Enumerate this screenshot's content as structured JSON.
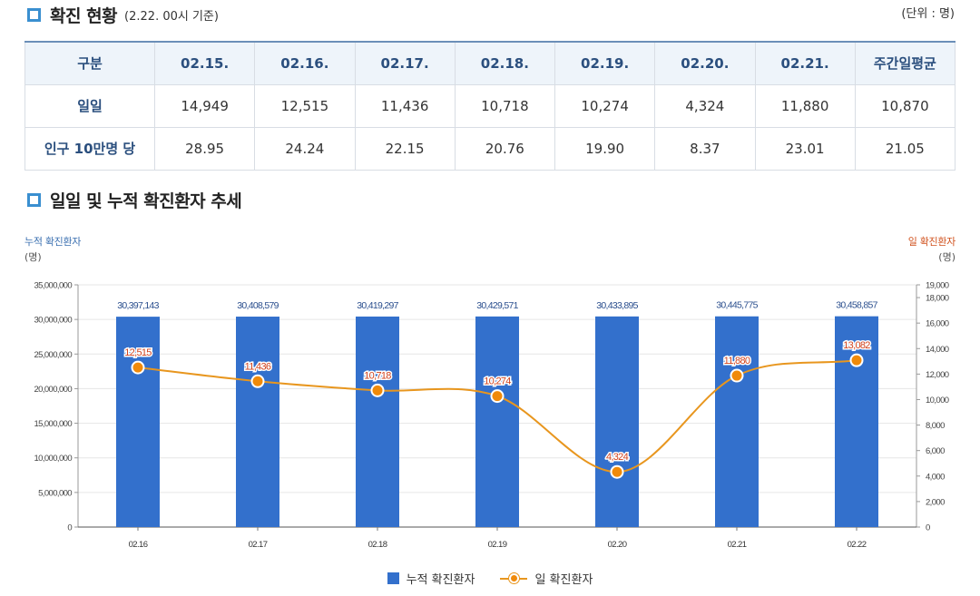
{
  "section1": {
    "title": "확진 현황",
    "subtitle": "(2.22. 00시 기준)",
    "unit": "(단위 : 명)"
  },
  "table": {
    "headers": [
      "구분",
      "02.15.",
      "02.16.",
      "02.17.",
      "02.18.",
      "02.19.",
      "02.20.",
      "02.21.",
      "주간일평균"
    ],
    "rows": [
      {
        "label": "일일",
        "values": [
          "14,949",
          "12,515",
          "11,436",
          "10,718",
          "10,274",
          "4,324",
          "11,880",
          "10,870"
        ]
      },
      {
        "label": "인구 10만명 당",
        "values": [
          "28.95",
          "24.24",
          "22.15",
          "20.76",
          "19.90",
          "8.37",
          "23.01",
          "21.05"
        ]
      }
    ]
  },
  "section2": {
    "title": "일일 및 누적 확진환자 추세"
  },
  "chart_data": {
    "type": "bar",
    "categories": [
      "02.16",
      "02.17",
      "02.18",
      "02.19",
      "02.20",
      "02.21",
      "02.22"
    ],
    "series": [
      {
        "name": "누적 확진환자",
        "type": "bar",
        "axis": "left",
        "color": "#3370cc",
        "values": [
          30397143,
          30408579,
          30419297,
          30429571,
          30433895,
          30445775,
          30458857
        ],
        "labels": [
          "30,397,143",
          "30,408,579",
          "30,419,297",
          "30,429,571",
          "30,433,895",
          "30,445,775",
          "30,458,857"
        ]
      },
      {
        "name": "일 확진환자",
        "type": "line",
        "axis": "right",
        "color": "#e8961e",
        "values": [
          12515,
          11436,
          10718,
          10274,
          4324,
          11880,
          13082
        ],
        "labels": [
          "12,515",
          "11,436",
          "10,718",
          "10,274",
          "4,324",
          "11,880",
          "13,082"
        ]
      }
    ],
    "left_axis": {
      "title": "누적 확진환자",
      "unit": "(명)",
      "ylim": [
        0,
        35000000
      ],
      "ticks": [
        0,
        5000000,
        10000000,
        15000000,
        20000000,
        25000000,
        30000000,
        35000000
      ],
      "tick_labels": [
        "0",
        "5,000,000",
        "10,000,000",
        "15,000,000",
        "20,000,000",
        "25,000,000",
        "30,000,000",
        "35,000,000"
      ]
    },
    "right_axis": {
      "title": "일 확진환자",
      "unit": "(명)",
      "ylim": [
        0,
        19000
      ],
      "ticks": [
        0,
        2000,
        4000,
        6000,
        8000,
        10000,
        12000,
        14000,
        16000,
        18000,
        19000
      ],
      "tick_labels": [
        "0",
        "2,000",
        "4,000",
        "6,000",
        "8,000",
        "10,000",
        "12,000",
        "14,000",
        "16,000",
        "18,000",
        "19,000"
      ]
    },
    "grid": true,
    "legend": "bottom-center",
    "colors": {
      "bar": "#3370cc",
      "line": "#e8961e",
      "bar_label": "#2b4f8e",
      "line_label": "#d0431e",
      "left_title": "#3a6fb0",
      "right_title": "#d0521e"
    }
  }
}
